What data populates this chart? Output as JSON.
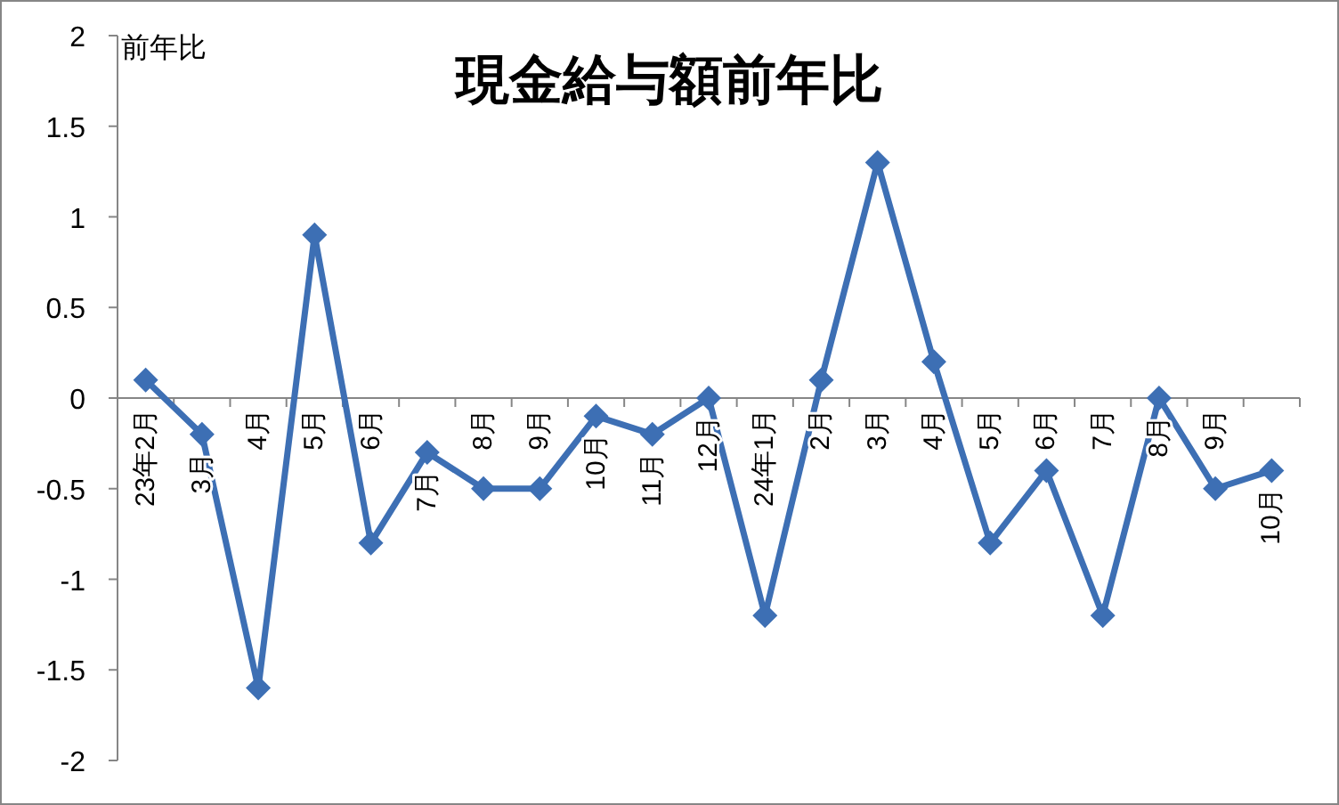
{
  "chart_data": {
    "type": "line",
    "title": "現金給与額前年比",
    "ylabel": "前年比",
    "categories": [
      "23年2月",
      "3月",
      "4月",
      "5月",
      "6月",
      "7月",
      "8月",
      "9月",
      "10月",
      "11月",
      "12月",
      "24年1月",
      "2月",
      "3月",
      "4月",
      "5月",
      "6月",
      "7月",
      "8月",
      "9月",
      "10月"
    ],
    "values": [
      0.1,
      -0.2,
      -1.6,
      0.9,
      -0.8,
      -0.3,
      -0.5,
      -0.5,
      -0.1,
      -0.2,
      0,
      -1.2,
      0.1,
      1.3,
      0.2,
      -0.8,
      -0.4,
      -1.2,
      0,
      -0.5,
      -0.4
    ],
    "color": "#3d6fb4",
    "ylim": [
      -2,
      2
    ],
    "yticks": [
      -2,
      -1.5,
      -1,
      -0.5,
      0,
      0.5,
      1,
      1.5,
      2
    ],
    "marker": "diamond",
    "line_style": "solid"
  }
}
